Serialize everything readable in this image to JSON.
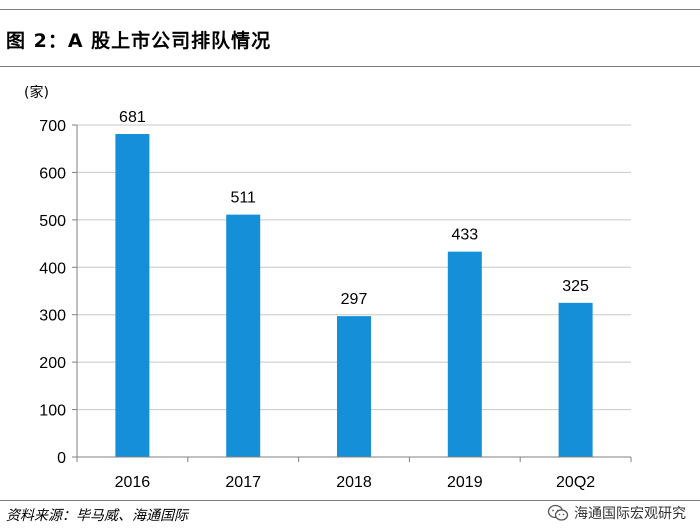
{
  "header": {
    "title": "图 2：A 股上市公司排队情况"
  },
  "footer": {
    "source": "资料来源：毕马威、海通国际",
    "watermark": "海通国际宏观研究",
    "watermark_icon": "wechat-icon"
  },
  "chart_data": {
    "type": "bar",
    "unit_label": "(家)",
    "categories": [
      "2016",
      "2017",
      "2018",
      "2019",
      "20Q2"
    ],
    "values": [
      681,
      511,
      297,
      433,
      325
    ],
    "data_labels": [
      "681",
      "511",
      "297",
      "433",
      "325"
    ],
    "ylim": [
      0,
      700
    ],
    "yticks": [
      0,
      100,
      200,
      300,
      400,
      500,
      600,
      700
    ],
    "grid": true,
    "bar_color": "#1590d8",
    "grid_color": "#c8c8c8",
    "axis_color": "#808080"
  }
}
